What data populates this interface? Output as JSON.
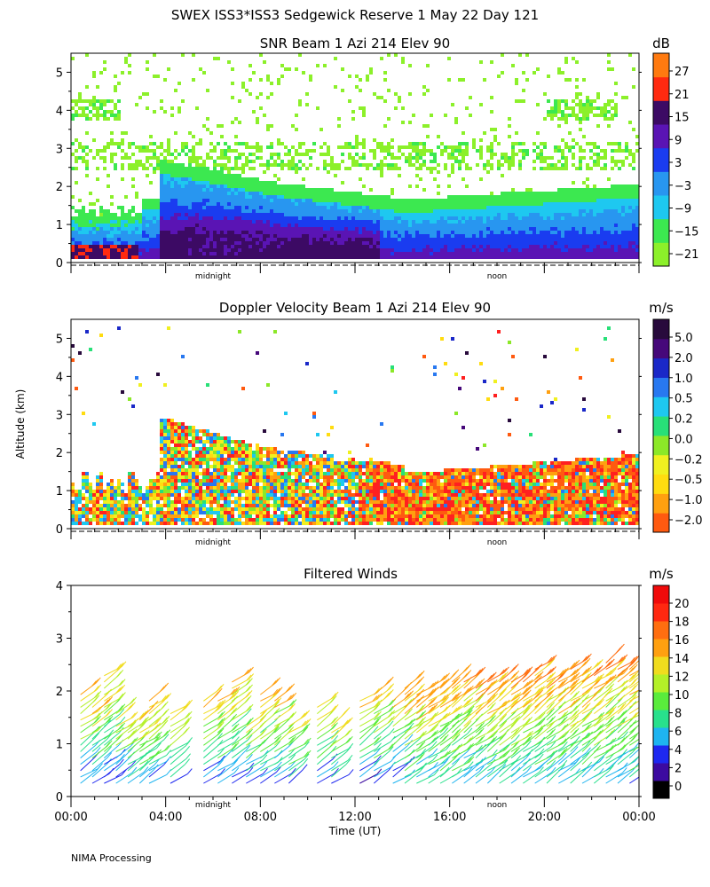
{
  "header": {
    "title": "SWEX ISS3*ISS3 Sedgewick Reserve   1 May 22 Day 121"
  },
  "footer": {
    "credit": "NIMA Processing"
  },
  "shared": {
    "ylabel": "Altitude (km)",
    "xlabel": "Time (UT)",
    "midnight_label": "midnight",
    "noon_label": "noon"
  },
  "colors": {
    "palette": [
      "#8cf02a",
      "#3ce850",
      "#1ec8f0",
      "#2896f0",
      "#1a3cf0",
      "#5a14b4",
      "#3c0a64",
      "#ff2a10",
      "#ff7a10",
      "#ffb41a",
      "#f0e61e"
    ],
    "velocity_palette": [
      "#ff2020",
      "#ff5a10",
      "#ffa010",
      "#ffdc10",
      "#f0f020",
      "#8ce828",
      "#28e078",
      "#1ec8f0",
      "#2878f0",
      "#1a28c8",
      "#46087a",
      "#280a3c"
    ],
    "wind_palette": [
      "#000000",
      "#3c0aa0",
      "#1e28f0",
      "#1eb4f0",
      "#28e08c",
      "#5aec3c",
      "#b4f028",
      "#f0dc1e",
      "#ffa010",
      "#ff6e10",
      "#ff2810",
      "#f00a0a"
    ]
  },
  "chart_data": [
    {
      "type": "heatmap",
      "title": "SNR Beam 1 Azi 214 Elev 90",
      "ylim": [
        0,
        5.5
      ],
      "yticks": [
        "0",
        "1",
        "2",
        "3",
        "4",
        "5"
      ],
      "xlim_hours": [
        0,
        24
      ],
      "colorbar": {
        "unit": "dB",
        "labels": [
          "27",
          "21",
          "15",
          "9",
          "3",
          "−3",
          "−9",
          "−15",
          "−21"
        ]
      }
    },
    {
      "type": "heatmap",
      "title": "Doppler Velocity Beam 1 Azi 214 Elev 90",
      "ylim": [
        0,
        5.5
      ],
      "yticks": [
        "0",
        "1",
        "2",
        "3",
        "4",
        "5"
      ],
      "xlim_hours": [
        0,
        24
      ],
      "colorbar": {
        "unit": "m/s",
        "labels": [
          "5.0",
          "2.0",
          "1.0",
          "0.5",
          "0.2",
          "0.0",
          "−0.2",
          "−0.5",
          "−1.0",
          "−2.0"
        ]
      }
    },
    {
      "type": "scatter",
      "title": "Filtered Winds",
      "ylim": [
        0,
        4
      ],
      "yticks": [
        "0",
        "1",
        "2",
        "3",
        "4"
      ],
      "xlim_hours": [
        0,
        24
      ],
      "xticks": [
        "00:00",
        "04:00",
        "08:00",
        "12:00",
        "16:00",
        "20:00",
        "00:00"
      ],
      "colorbar": {
        "unit": "m/s",
        "labels": [
          "20",
          "18",
          "16",
          "14",
          "12",
          "10",
          "8",
          "6",
          "4",
          "2",
          "0"
        ]
      }
    }
  ]
}
